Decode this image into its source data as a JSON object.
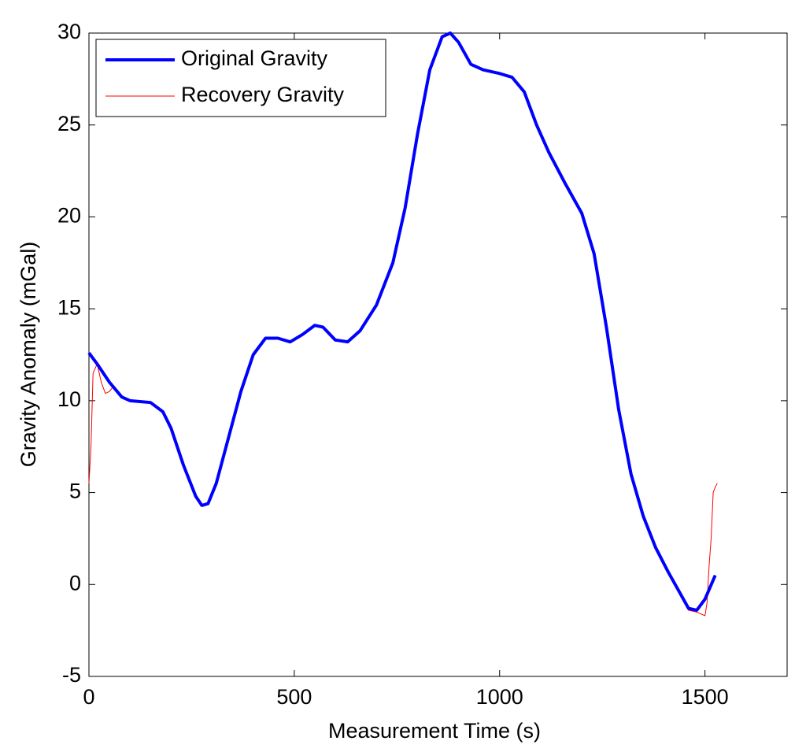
{
  "chart_data": {
    "type": "line",
    "xlabel": "Measurement Time (s)",
    "ylabel": "Gravity Anomaly (mGal)",
    "xlim": [
      0,
      1700
    ],
    "xticks": [
      0,
      500,
      1000,
      1500
    ],
    "ylim": [
      -5,
      30
    ],
    "yticks": [
      -5,
      0,
      5,
      10,
      15,
      20,
      25,
      30
    ],
    "legend": "upper left",
    "series": [
      {
        "name": "Original Gravity",
        "color": "#0000ff",
        "x": [
          0,
          20,
          50,
          80,
          100,
          150,
          180,
          200,
          230,
          260,
          275,
          290,
          310,
          340,
          370,
          400,
          430,
          460,
          490,
          520,
          550,
          570,
          600,
          630,
          660,
          700,
          740,
          770,
          800,
          830,
          860,
          880,
          900,
          930,
          960,
          1000,
          1030,
          1060,
          1090,
          1120,
          1160,
          1200,
          1230,
          1260,
          1290,
          1320,
          1350,
          1380,
          1410,
          1440,
          1460,
          1480,
          1500,
          1525
        ],
        "values": [
          12.6,
          12.0,
          11.0,
          10.2,
          10.0,
          9.9,
          9.4,
          8.5,
          6.5,
          4.8,
          4.3,
          4.4,
          5.5,
          8.0,
          10.5,
          12.5,
          13.4,
          13.4,
          13.2,
          13.6,
          14.1,
          14.0,
          13.3,
          13.2,
          13.8,
          15.2,
          17.5,
          20.5,
          24.5,
          28.0,
          29.8,
          30.0,
          29.5,
          28.3,
          28.0,
          27.8,
          27.6,
          26.8,
          25.0,
          23.5,
          21.8,
          20.2,
          18.0,
          14.0,
          9.5,
          6.0,
          3.7,
          2.0,
          0.7,
          -0.5,
          -1.3,
          -1.4,
          -0.8,
          0.5
        ]
      },
      {
        "name": "Recovery Gravity",
        "color": "#ff0000",
        "x": [
          0,
          5,
          10,
          20,
          30,
          40,
          50,
          60,
          70,
          80,
          100,
          150,
          180,
          200,
          230,
          260,
          275,
          290,
          310,
          340,
          370,
          400,
          430,
          460,
          490,
          520,
          550,
          570,
          600,
          630,
          660,
          700,
          740,
          770,
          800,
          830,
          860,
          880,
          900,
          930,
          960,
          1000,
          1030,
          1060,
          1090,
          1120,
          1160,
          1200,
          1230,
          1260,
          1290,
          1320,
          1350,
          1380,
          1410,
          1440,
          1460,
          1480,
          1490,
          1500,
          1505,
          1510,
          1515,
          1520,
          1525,
          1530
        ],
        "values": [
          5.5,
          7.5,
          11.5,
          12.0,
          11.0,
          10.4,
          10.5,
          10.8,
          10.4,
          10.2,
          10.0,
          9.9,
          9.4,
          8.5,
          6.5,
          4.8,
          4.3,
          4.4,
          5.5,
          8.0,
          10.5,
          12.5,
          13.4,
          13.4,
          13.2,
          13.6,
          14.1,
          14.0,
          13.3,
          13.2,
          13.8,
          15.2,
          17.5,
          20.5,
          24.5,
          28.0,
          29.8,
          30.0,
          29.5,
          28.3,
          28.0,
          27.8,
          27.6,
          26.8,
          25.0,
          23.5,
          21.8,
          20.2,
          18.0,
          14.0,
          9.5,
          6.0,
          3.7,
          2.0,
          0.7,
          -0.5,
          -1.4,
          -1.5,
          -1.6,
          -1.7,
          -1.0,
          1.0,
          2.5,
          5.0,
          5.3,
          5.5
        ]
      }
    ]
  }
}
